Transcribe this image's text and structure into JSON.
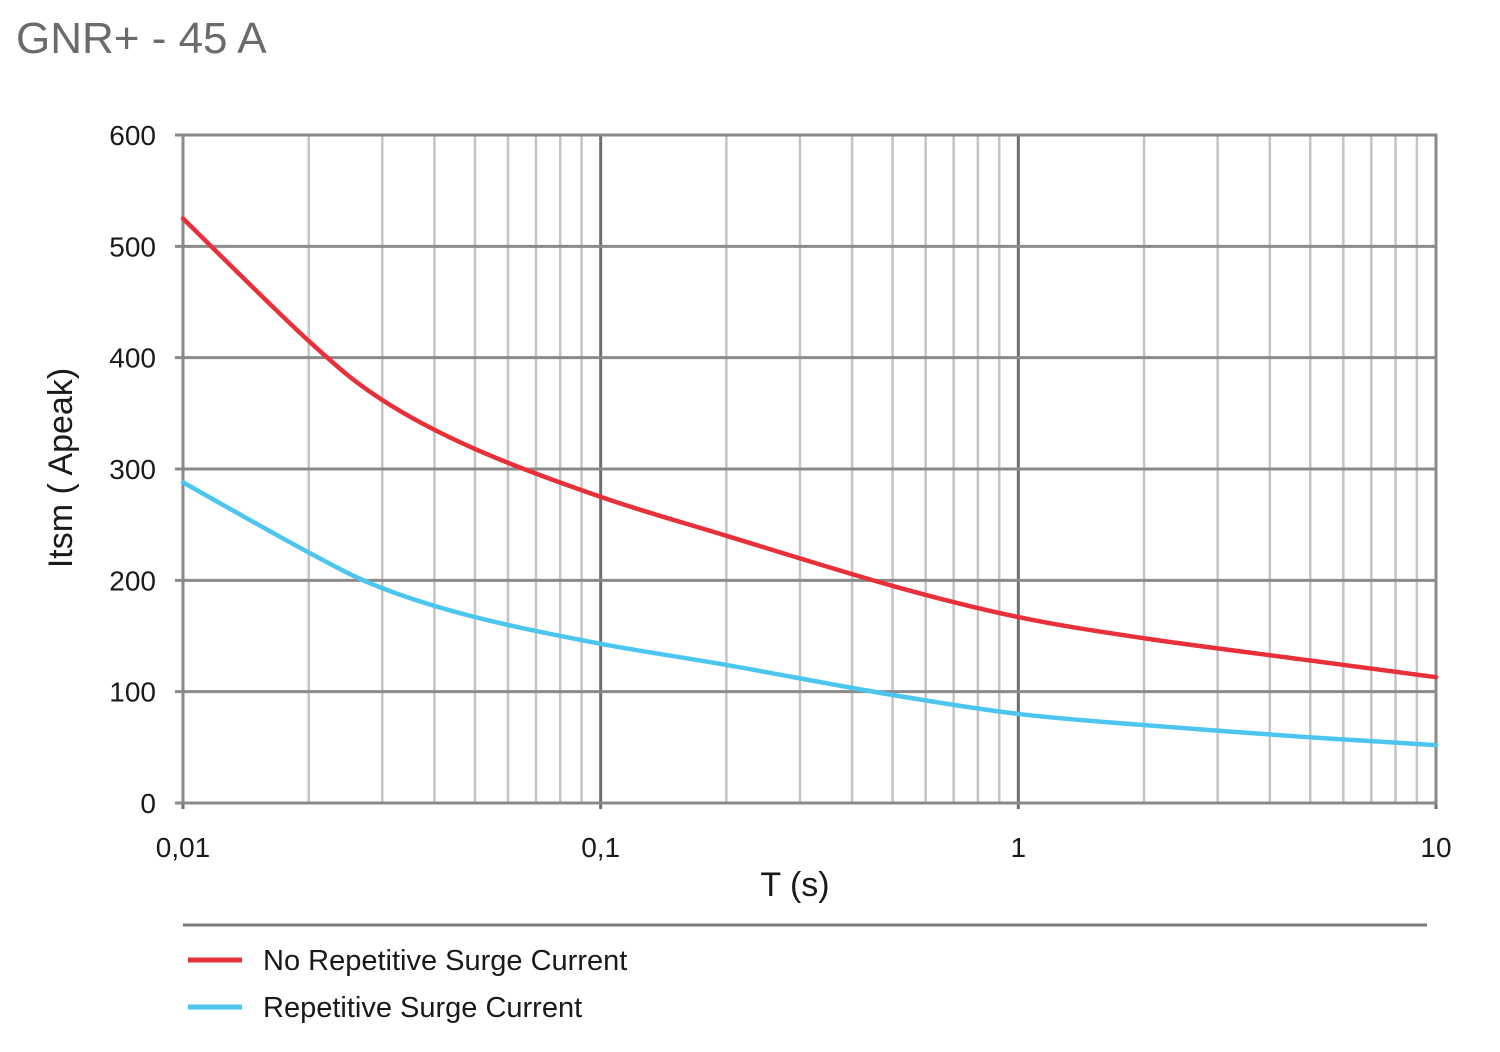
{
  "page_title": "GNR+ - 45 A",
  "chart_data": {
    "type": "line",
    "title": "GNR+ - 45 A",
    "xlabel": "T (s)",
    "ylabel": "Itsm ( Apeak)",
    "x_scale": "log",
    "xlim": [
      0.01,
      10
    ],
    "ylim": [
      0,
      600
    ],
    "x_ticks": [
      {
        "value": 0.01,
        "label": "0,01"
      },
      {
        "value": 0.1,
        "label": "0,1"
      },
      {
        "value": 1,
        "label": "1"
      },
      {
        "value": 10,
        "label": "10"
      }
    ],
    "y_ticks": [
      {
        "value": 0,
        "label": "0"
      },
      {
        "value": 100,
        "label": "100"
      },
      {
        "value": 200,
        "label": "200"
      },
      {
        "value": 300,
        "label": "300"
      },
      {
        "value": 400,
        "label": "400"
      },
      {
        "value": 500,
        "label": "500"
      },
      {
        "value": 600,
        "label": "600"
      }
    ],
    "grid": true,
    "legend_position": "bottom",
    "series": [
      {
        "name": "No Repetitive Surge Current",
        "color": "#e8303a",
        "x": [
          0.01,
          0.02,
          0.03,
          0.05,
          0.1,
          0.2,
          0.5,
          1,
          2,
          5,
          10
        ],
        "y": [
          525,
          415,
          362,
          318,
          275,
          240,
          195,
          167,
          148,
          128,
          113
        ]
      },
      {
        "name": "Repetitive Surge Current",
        "color": "#4cc6ee",
        "x": [
          0.01,
          0.02,
          0.03,
          0.05,
          0.1,
          0.2,
          0.5,
          1,
          2,
          5,
          10
        ],
        "y": [
          288,
          225,
          193,
          167,
          143,
          124,
          97,
          80,
          70,
          59,
          52
        ]
      }
    ]
  }
}
